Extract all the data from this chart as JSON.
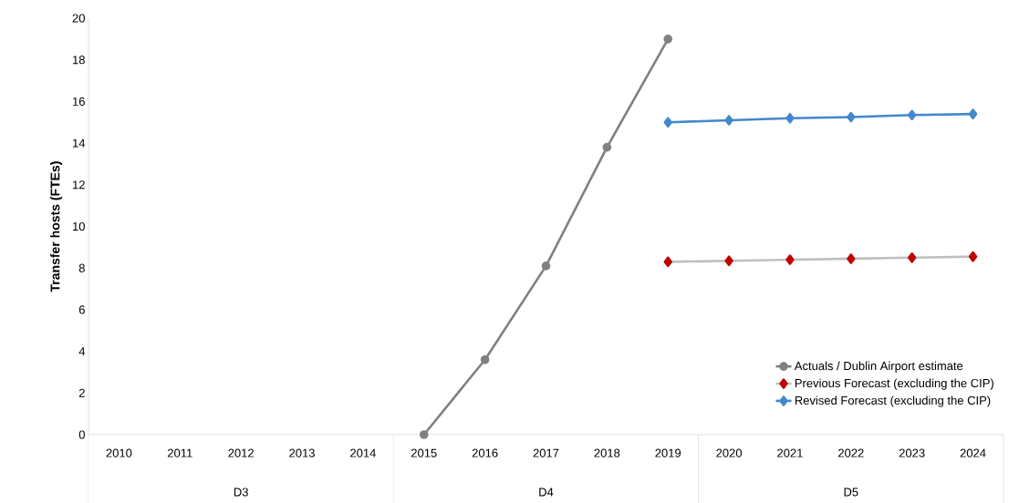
{
  "chart_data": {
    "type": "line",
    "ylabel": "Transfer hosts (FTEs)",
    "categories": [
      "2010",
      "2011",
      "2012",
      "2013",
      "2014",
      "2015",
      "2016",
      "2017",
      "2018",
      "2019",
      "2020",
      "2021",
      "2022",
      "2023",
      "2024"
    ],
    "series": [
      {
        "name": "Actuals / Dublin Airport estimate",
        "color": "#808080",
        "marker": "circle",
        "values": [
          null,
          null,
          null,
          null,
          null,
          0,
          3.6,
          8.1,
          13.8,
          19.0,
          null,
          null,
          null,
          null,
          null
        ]
      },
      {
        "name": "Previous Forecast (excluding the CIP)",
        "color": "#c00000",
        "marker": "diamond",
        "values": [
          null,
          null,
          null,
          null,
          null,
          null,
          null,
          null,
          null,
          8.3,
          8.35,
          8.4,
          8.45,
          8.5,
          8.55
        ]
      },
      {
        "name": "Revised Forecast (excluding the CIP)",
        "color": "#4488cc",
        "marker": "diamond",
        "values": [
          null,
          null,
          null,
          null,
          null,
          null,
          null,
          null,
          null,
          15.0,
          15.1,
          15.2,
          15.25,
          15.35,
          15.4
        ]
      }
    ],
    "annotations": [
      "D3",
      "D4",
      "D5"
    ],
    "ylim": [
      0,
      20
    ],
    "yticks": [
      0,
      2,
      4,
      6,
      8,
      10,
      12,
      14,
      16,
      18,
      20
    ],
    "grid": false,
    "legend": "bottom right"
  }
}
